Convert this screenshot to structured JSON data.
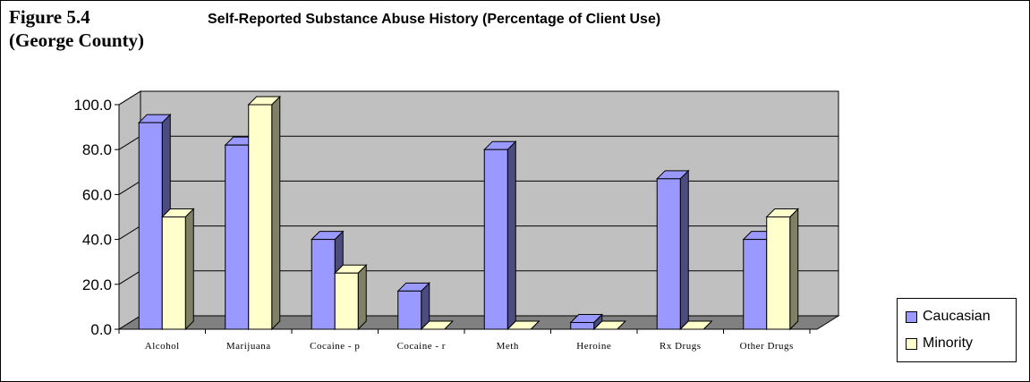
{
  "figure": {
    "label_line1": "Figure 5.4",
    "label_line2": "(George County)"
  },
  "chart_data": {
    "type": "bar",
    "title": "Self-Reported Substance Abuse History (Percentage of Client Use)",
    "xlabel": "",
    "ylabel": "",
    "categories": [
      "Alcohol",
      "Marijuana",
      "Cocaine - p",
      "Cocaine - r",
      "Meth",
      "Heroine",
      "Rx Drugs",
      "Other Drugs"
    ],
    "series": [
      {
        "name": "Caucasian",
        "values": [
          92.0,
          82.0,
          40.0,
          17.0,
          80.0,
          3.0,
          67.0,
          40.0
        ],
        "color": "#9999ff",
        "side_color": "#4c4c80"
      },
      {
        "name": "Minority",
        "values": [
          50.0,
          100.0,
          25.0,
          0.0,
          0.0,
          0.0,
          0.0,
          50.0
        ],
        "color": "#ffffcc",
        "side_color": "#808066"
      }
    ],
    "yticks": [
      "0.0",
      "20.0",
      "40.0",
      "60.0",
      "80.0",
      "100.0"
    ],
    "ylim": [
      0,
      100
    ],
    "grid": true,
    "three_d": true,
    "legend_position": "right"
  }
}
